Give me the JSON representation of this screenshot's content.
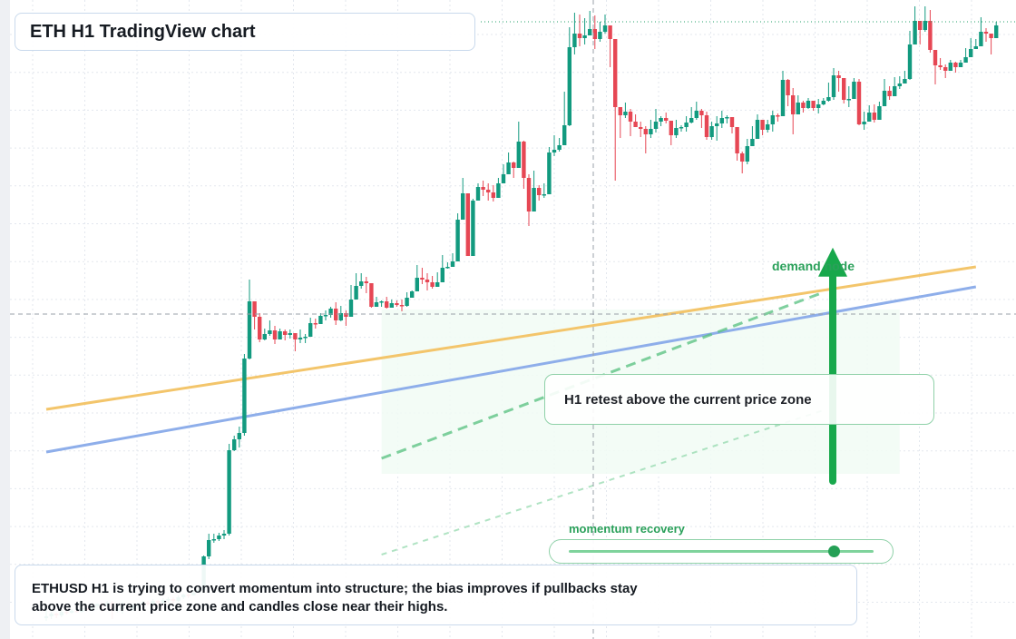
{
  "title": "ETH H1 TradingView chart",
  "annotations": {
    "demand_label": "demand node",
    "retest_note": "H1 retest above the current price zone",
    "momentum_label": "momentum recovery",
    "momentum_level": 0.87,
    "summary_line1": "ETHUSD H1 is trying to convert momentum into structure; the bias improves if pullbacks stay",
    "summary_line2": "above the current price zone and candles close near their highs."
  },
  "colors": {
    "up_candle": "#129a7f",
    "down_candle": "#e64754",
    "upper_trendline": "#f3c56b",
    "lower_trendline": "#8eaeea",
    "signal_arrow": "#18a84c",
    "zone_fill": "#f1fbf4"
  },
  "chart_data": {
    "type": "candlestick",
    "title": "ETH H1 TradingView chart",
    "symbol": "ETHUSD",
    "timeframe": "H1",
    "grid": true,
    "candles": [
      [
        19,
        21,
        28,
        16
      ],
      [
        21,
        24,
        26,
        18
      ],
      [
        24,
        22,
        25,
        19
      ],
      [
        22,
        26,
        28,
        20
      ],
      [
        26,
        25,
        28,
        23
      ],
      [
        25,
        27,
        29,
        24
      ],
      [
        27,
        26,
        28,
        25
      ],
      [
        26,
        30,
        36,
        25
      ],
      [
        30,
        28,
        31,
        26
      ],
      [
        28,
        32,
        36,
        28
      ],
      [
        32,
        35,
        35,
        28
      ],
      [
        35,
        33,
        36,
        26
      ],
      [
        33,
        36,
        38,
        31
      ],
      [
        36,
        27,
        38,
        18
      ],
      [
        27,
        29,
        31,
        25
      ],
      [
        29,
        31,
        37,
        24
      ],
      [
        31,
        29,
        33,
        27
      ],
      [
        29,
        33,
        35,
        27
      ],
      [
        33,
        34,
        36,
        30
      ],
      [
        34,
        36,
        38,
        32
      ],
      [
        36,
        35,
        38,
        33
      ],
      [
        35,
        38,
        40,
        33
      ],
      [
        38,
        36,
        39,
        33
      ],
      [
        36,
        39,
        41,
        35
      ],
      [
        39,
        40,
        42,
        36
      ],
      [
        40,
        38,
        42,
        35
      ],
      [
        38,
        42,
        44,
        37
      ],
      [
        42,
        45,
        46,
        40
      ],
      [
        45,
        44,
        46,
        41
      ],
      [
        44,
        47,
        50,
        45
      ],
      [
        47,
        50,
        52,
        47
      ],
      [
        50,
        87,
        88,
        49
      ],
      [
        87,
        105,
        112,
        84
      ],
      [
        105,
        106,
        112,
        102
      ],
      [
        106,
        110,
        113,
        104
      ],
      [
        110,
        112,
        116,
        106
      ],
      [
        112,
        204,
        211,
        110
      ],
      [
        204,
        216,
        220,
        203
      ],
      [
        216,
        223,
        230,
        207
      ],
      [
        223,
        305,
        310,
        220
      ],
      [
        305,
        368,
        392,
        304
      ],
      [
        368,
        351,
        364,
        337
      ],
      [
        351,
        326,
        355,
        323
      ],
      [
        326,
        332,
        338,
        325
      ],
      [
        332,
        336,
        347,
        330
      ],
      [
        336,
        326,
        341,
        321
      ],
      [
        326,
        335,
        338,
        330
      ],
      [
        335,
        331,
        337,
        325
      ],
      [
        331,
        333,
        337,
        327
      ],
      [
        333,
        326,
        331,
        313
      ],
      [
        326,
        328,
        337,
        322
      ],
      [
        328,
        329,
        332,
        322
      ],
      [
        329,
        344,
        350,
        330
      ],
      [
        344,
        343,
        349,
        338
      ],
      [
        343,
        352,
        355,
        343
      ],
      [
        352,
        353,
        358,
        347
      ],
      [
        353,
        360,
        362,
        350
      ],
      [
        360,
        347,
        367,
        342
      ],
      [
        347,
        355,
        363,
        346
      ],
      [
        355,
        351,
        358,
        341
      ],
      [
        351,
        370,
        386,
        351
      ],
      [
        370,
        385,
        399,
        372
      ],
      [
        385,
        390,
        399,
        382
      ],
      [
        390,
        388,
        395,
        377
      ],
      [
        388,
        362,
        386,
        361
      ],
      [
        362,
        367,
        373,
        362
      ],
      [
        367,
        368,
        369,
        362
      ],
      [
        368,
        361,
        373,
        360
      ],
      [
        361,
        366,
        370,
        364
      ],
      [
        366,
        364,
        369,
        362
      ],
      [
        364,
        363,
        370,
        357
      ],
      [
        363,
        372,
        378,
        362
      ],
      [
        372,
        379,
        380,
        373
      ],
      [
        379,
        394,
        408,
        380
      ],
      [
        394,
        392,
        405,
        387
      ],
      [
        392,
        389,
        399,
        380
      ],
      [
        389,
        384,
        396,
        382
      ],
      [
        384,
        389,
        400,
        385
      ],
      [
        389,
        405,
        419,
        389
      ],
      [
        405,
        406,
        411,
        404
      ],
      [
        406,
        412,
        421,
        406
      ],
      [
        412,
        458,
        465,
        412
      ],
      [
        458,
        487,
        504,
        469
      ],
      [
        487,
        418,
        483,
        459
      ],
      [
        418,
        479,
        481,
        465
      ],
      [
        479,
        494,
        498,
        489
      ],
      [
        494,
        491,
        501,
        484
      ],
      [
        491,
        488,
        498,
        479
      ],
      [
        488,
        482,
        496,
        478
      ],
      [
        482,
        498,
        504,
        493
      ],
      [
        498,
        508,
        519,
        502
      ],
      [
        508,
        521,
        532,
        516
      ],
      [
        521,
        515,
        522,
        504
      ],
      [
        515,
        544,
        566,
        526
      ],
      [
        544,
        504,
        545,
        492
      ],
      [
        504,
        467,
        508,
        451
      ],
      [
        467,
        493,
        512,
        490
      ],
      [
        493,
        485,
        496,
        479
      ],
      [
        485,
        486,
        498,
        482
      ],
      [
        486,
        532,
        538,
        526
      ],
      [
        532,
        535,
        551,
        528
      ],
      [
        535,
        540,
        548,
        533
      ],
      [
        540,
        562,
        599,
        558
      ],
      [
        562,
        648,
        670,
        561
      ],
      [
        648,
        663,
        686,
        640
      ],
      [
        663,
        658,
        684,
        649
      ],
      [
        658,
        661,
        680,
        651
      ],
      [
        661,
        668,
        688,
        662
      ],
      [
        668,
        657,
        683,
        646
      ],
      [
        657,
        665,
        676,
        654
      ],
      [
        665,
        672,
        684,
        663
      ],
      [
        672,
        657,
        668,
        626
      ],
      [
        657,
        582,
        656,
        501
      ],
      [
        582,
        573,
        581,
        548
      ],
      [
        573,
        577,
        587,
        570
      ],
      [
        577,
        566,
        580,
        550
      ],
      [
        566,
        560,
        574,
        562
      ],
      [
        560,
        558,
        566,
        549
      ],
      [
        558,
        552,
        561,
        531
      ],
      [
        552,
        558,
        568,
        548
      ],
      [
        558,
        566,
        580,
        554
      ],
      [
        566,
        570,
        572,
        561
      ],
      [
        570,
        567,
        576,
        564
      ],
      [
        567,
        551,
        560,
        540
      ],
      [
        551,
        559,
        568,
        548
      ],
      [
        559,
        560,
        562,
        555
      ],
      [
        560,
        565,
        572,
        555
      ],
      [
        565,
        570,
        582,
        564
      ],
      [
        570,
        578,
        588,
        568
      ],
      [
        578,
        573,
        580,
        559
      ],
      [
        573,
        549,
        577,
        546
      ],
      [
        549,
        561,
        566,
        546
      ],
      [
        561,
        564,
        572,
        545
      ],
      [
        564,
        570,
        578,
        559
      ],
      [
        570,
        571,
        573,
        564
      ],
      [
        571,
        560,
        564,
        553
      ],
      [
        560,
        531,
        558,
        523
      ],
      [
        531,
        522,
        533,
        509
      ],
      [
        522,
        539,
        547,
        519
      ],
      [
        539,
        547,
        561,
        545
      ],
      [
        547,
        568,
        574,
        551
      ],
      [
        568,
        557,
        562,
        551
      ],
      [
        557,
        563,
        568,
        554
      ],
      [
        563,
        573,
        578,
        555
      ],
      [
        573,
        572,
        575,
        566
      ],
      [
        572,
        612,
        622,
        573
      ],
      [
        612,
        595,
        613,
        583
      ],
      [
        595,
        574,
        603,
        552
      ],
      [
        574,
        587,
        595,
        575
      ],
      [
        587,
        581,
        589,
        576
      ],
      [
        581,
        589,
        592,
        580
      ],
      [
        589,
        581,
        587,
        578
      ],
      [
        581,
        585,
        591,
        575
      ],
      [
        585,
        589,
        592,
        584
      ],
      [
        589,
        593,
        609,
        588
      ],
      [
        593,
        617,
        625,
        590
      ],
      [
        617,
        614,
        622,
        599
      ],
      [
        614,
        590,
        613,
        586
      ],
      [
        590,
        591,
        605,
        582
      ],
      [
        591,
        610,
        614,
        598
      ],
      [
        610,
        563,
        613,
        562
      ],
      [
        563,
        566,
        577,
        557
      ],
      [
        566,
        576,
        584,
        567
      ],
      [
        576,
        568,
        585,
        565
      ],
      [
        568,
        583,
        588,
        572
      ],
      [
        583,
        600,
        613,
        595
      ],
      [
        600,
        594,
        605,
        590
      ],
      [
        594,
        605,
        615,
        602
      ],
      [
        605,
        608,
        616,
        602
      ],
      [
        608,
        613,
        622,
        610
      ],
      [
        613,
        651,
        666,
        612
      ],
      [
        651,
        677,
        693,
        670
      ],
      [
        677,
        667,
        676,
        651
      ],
      [
        667,
        677,
        693,
        665
      ],
      [
        677,
        645,
        689,
        642
      ],
      [
        645,
        628,
        640,
        607
      ],
      [
        628,
        626,
        636,
        623
      ],
      [
        626,
        622,
        629,
        614
      ],
      [
        622,
        631,
        634,
        625
      ],
      [
        631,
        626,
        632,
        620
      ],
      [
        626,
        631,
        634,
        628
      ],
      [
        631,
        637,
        647,
        631
      ],
      [
        637,
        646,
        658,
        639
      ],
      [
        646,
        649,
        657,
        646
      ],
      [
        649,
        665,
        681,
        659
      ],
      [
        665,
        663,
        669,
        654
      ],
      [
        663,
        658,
        659,
        640
      ],
      [
        658,
        672,
        676,
        670
      ]
    ],
    "trendlines": [
      {
        "name": "upper",
        "from": [
          0,
          249
        ],
        "to": [
          183,
          406
        ]
      },
      {
        "name": "lower",
        "from": [
          0,
          202
        ],
        "to": [
          183,
          384
        ]
      },
      {
        "name": "dashed-support",
        "from": [
          66,
          195
        ],
        "to": [
          153,
          378
        ]
      },
      {
        "name": "faint-support",
        "from": [
          66,
          89
        ],
        "to": [
          153,
          248
        ]
      }
    ],
    "demand_zone": {
      "x_from": 66,
      "x_to": 168,
      "y_from": 178,
      "y_to": 359
    },
    "reference_price": 354,
    "ylim": [
      0,
      700
    ]
  }
}
